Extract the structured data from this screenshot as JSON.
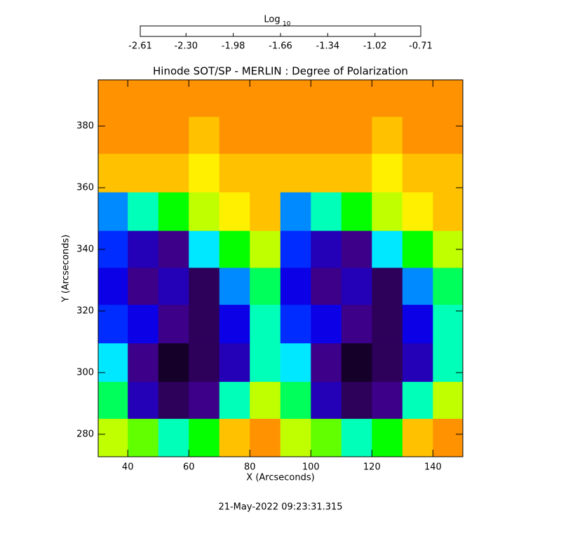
{
  "chart_data": {
    "type": "heatmap",
    "title": "Hinode SOT/SP - MERLIN : Degree of Polarization",
    "colorbar_title": "Log",
    "colorbar_title_subscript": "10",
    "x_label": "X (Arcseconds)",
    "y_label": "Y (Arcseconds)",
    "caption": "21-May-2022 09:23:31.315",
    "xlim": [
      30.3,
      149.8
    ],
    "ylim": [
      272.7,
      395
    ],
    "xticks": [
      40,
      60,
      80,
      100,
      120,
      140
    ],
    "yticks": [
      280,
      300,
      320,
      340,
      360,
      380
    ],
    "zlim": [
      -2.61,
      -0.71
    ],
    "zticks": [
      -2.61,
      {
        "value": -2.3,
        "label": "-2.30"
      },
      -1.98,
      -1.66,
      -1.34,
      -1.02,
      -0.71
    ],
    "colorscale": [
      "#ff0000",
      "#ff8000",
      "#ffff00",
      "#00ff00",
      "#00ffff",
      "#0000ff",
      "#400080",
      "#000000"
    ],
    "x": [
      35,
      45,
      55,
      65,
      75,
      85,
      95,
      105,
      115,
      125,
      135,
      145
    ],
    "y": [
      389,
      377,
      365,
      352,
      340,
      328,
      316,
      303,
      291,
      279
    ],
    "z": [
      [
        -2.3,
        -2.3,
        -2.3,
        -2.3,
        -2.3,
        -2.3,
        -2.3,
        -2.3,
        -2.3,
        -2.3,
        -2.3,
        -2.3
      ],
      [
        -2.3,
        -2.3,
        -2.3,
        -2.2,
        -2.3,
        -2.3,
        -2.3,
        -2.3,
        -2.3,
        -2.2,
        -2.3,
        -2.3
      ],
      [
        -2.2,
        -2.2,
        -2.2,
        -2.1,
        -2.2,
        -2.2,
        -2.2,
        -2.2,
        -2.2,
        -2.1,
        -2.2,
        -2.2
      ],
      [
        -1.4,
        -1.6,
        -1.8,
        -2.0,
        -2.1,
        -2.2,
        -1.4,
        -1.6,
        -1.8,
        -2.0,
        -2.1,
        -2.2
      ],
      [
        -1.3,
        -1.1,
        -1.0,
        -1.5,
        -1.8,
        -2.0,
        -1.3,
        -1.1,
        -1.0,
        -1.5,
        -1.8,
        -2.0
      ],
      [
        -1.2,
        -1.0,
        -1.1,
        -0.9,
        -1.4,
        -1.7,
        -1.2,
        -1.0,
        -1.1,
        -0.9,
        -1.4,
        -1.7
      ],
      [
        -1.3,
        -1.2,
        -1.0,
        -0.9,
        -1.2,
        -1.6,
        -1.3,
        -1.2,
        -1.0,
        -0.9,
        -1.2,
        -1.6
      ],
      [
        -1.5,
        -1.0,
        -0.8,
        -0.9,
        -1.1,
        -1.6,
        -1.5,
        -1.0,
        -0.8,
        -0.9,
        -1.1,
        -1.6
      ],
      [
        -1.7,
        -1.1,
        -0.9,
        -1.0,
        -1.6,
        -2.0,
        -1.7,
        -1.1,
        -0.9,
        -1.0,
        -1.6,
        -2.0
      ],
      [
        -2.0,
        -1.9,
        -1.6,
        -1.8,
        -2.2,
        -2.3,
        -2.0,
        -1.9,
        -1.6,
        -1.8,
        -2.2,
        -2.3
      ]
    ]
  }
}
